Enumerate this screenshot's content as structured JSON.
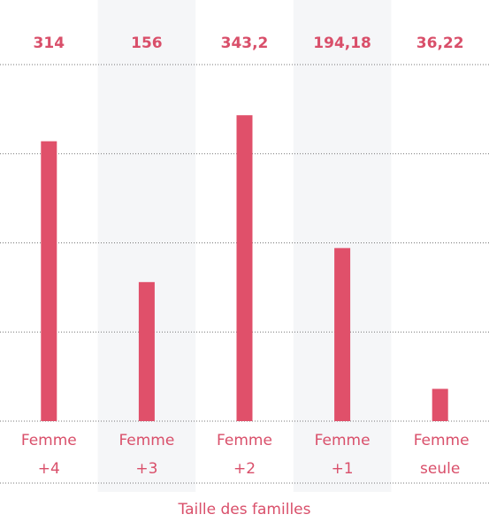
{
  "chart_data": {
    "type": "bar",
    "categories": [
      "Femme +4",
      "Femme +3",
      "Femme +2",
      "Femme +1",
      "Femme seule"
    ],
    "values": [
      314,
      156,
      343.2,
      194.18,
      36.22
    ],
    "value_labels": [
      "314",
      "156",
      "343,2",
      "194,18",
      "36,22"
    ],
    "color": "#e0506a",
    "x_label": "Taille des familles",
    "ylim": [
      0,
      400
    ],
    "yticks": [
      0,
      100,
      200,
      300,
      400
    ],
    "grid": true
  }
}
